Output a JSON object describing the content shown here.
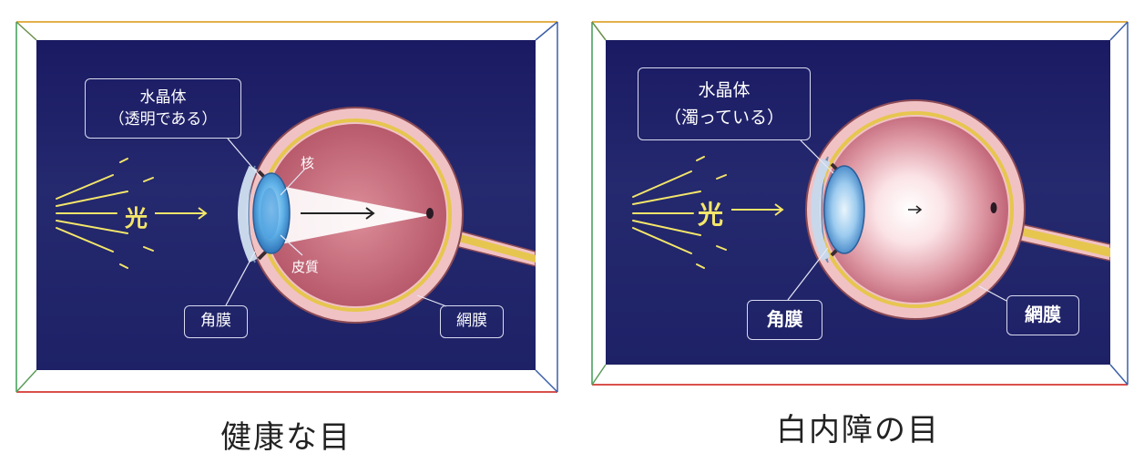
{
  "panels": [
    {
      "caption": "健康な目",
      "lens_label_line1": "水晶体",
      "lens_label_line2": "（透明である）",
      "nucleus_label": "核",
      "cortex_label": "皮質",
      "cornea_label": "角膜",
      "retina_label": "網膜",
      "light_label": "光"
    },
    {
      "caption": "白内障の目",
      "lens_label_line1": "水晶体",
      "lens_label_line2": "（濁っている）",
      "cornea_label": "角膜",
      "retina_label": "網膜",
      "light_label": "光"
    }
  ],
  "colors": {
    "background": "#1f2168",
    "eye_interior": "#c66c7d",
    "sclera": "#f1c2c4",
    "retina_line": "#e6c64e",
    "lens_blue": "#5fb1e8",
    "light_yellow": "#f4e66a"
  }
}
